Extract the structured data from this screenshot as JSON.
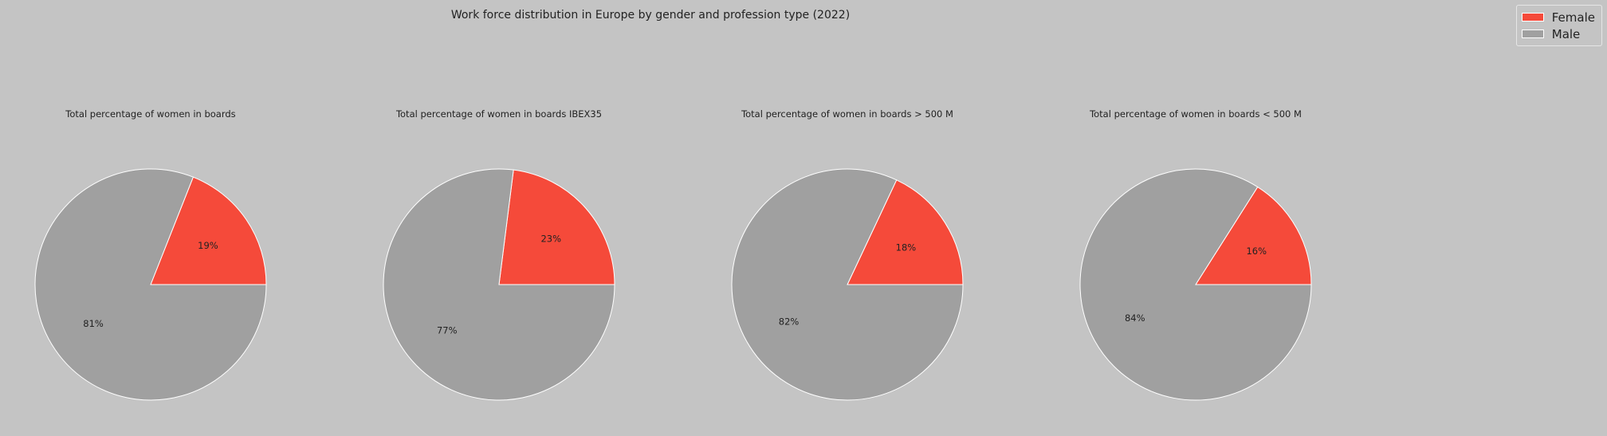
{
  "suptitle": "Work force distribution in Europe by gender and profession type (2022)",
  "legend": [
    {
      "label": "Female",
      "color": "#f54a3a"
    },
    {
      "label": "Male",
      "color": "#a0a0a0"
    }
  ],
  "chart_data": [
    {
      "type": "pie",
      "title": "Total percentage of women in boards",
      "labels": [
        "Female",
        "Male"
      ],
      "values": [
        19,
        81
      ],
      "colors": [
        "#f54a3a",
        "#a0a0a0"
      ]
    },
    {
      "type": "pie",
      "title": "Total percentage of women in boards IBEX35",
      "labels": [
        "Female",
        "Male"
      ],
      "values": [
        23,
        77
      ],
      "colors": [
        "#f54a3a",
        "#a0a0a0"
      ]
    },
    {
      "type": "pie",
      "title": "Total percentage of women in boards > 500 M",
      "labels": [
        "Female",
        "Male"
      ],
      "values": [
        18,
        82
      ],
      "colors": [
        "#f54a3a",
        "#a0a0a0"
      ]
    },
    {
      "type": "pie",
      "title": "Total percentage of women in boards < 500 M",
      "labels": [
        "Female",
        "Male"
      ],
      "values": [
        16,
        84
      ],
      "colors": [
        "#f54a3a",
        "#a0a0a0"
      ]
    }
  ]
}
